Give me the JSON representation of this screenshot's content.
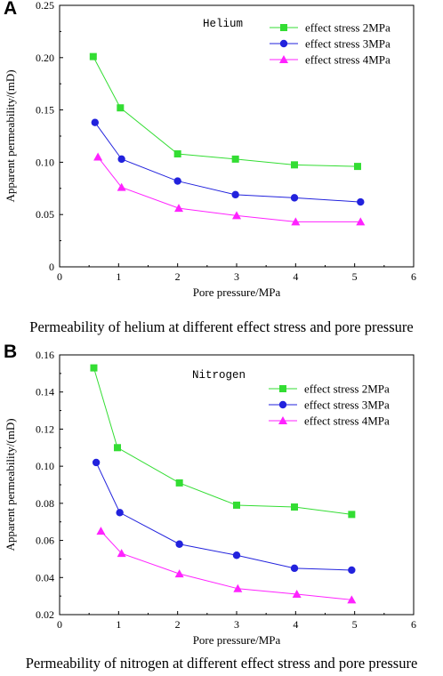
{
  "panels": [
    {
      "letter": "A",
      "caption": "Permeability of helium at different effect stress and pore pressure"
    },
    {
      "letter": "B",
      "caption": "Permeability of nitrogen at different effect stress and pore pressure"
    }
  ],
  "chart_data": [
    {
      "type": "line",
      "annotation": "Helium",
      "xlabel": "Pore pressure/MPa",
      "ylabel": "Apparent permeability/(mD)",
      "xlim": [
        0,
        6
      ],
      "ylim": [
        0,
        0.25
      ],
      "x_ticks": [
        "0",
        "1",
        "2",
        "3",
        "4",
        "5",
        "6"
      ],
      "y_ticks": [
        "0",
        "0.05",
        "0.10",
        "0.15",
        "0.20",
        "0.25"
      ],
      "legend_position": "top-right",
      "grid": false,
      "series": [
        {
          "name": "effect stress 2MPa",
          "color": "#33dd33",
          "marker": "square",
          "x": [
            0.57,
            1.03,
            2.0,
            2.98,
            3.98,
            5.05
          ],
          "y": [
            0.201,
            0.152,
            0.108,
            0.103,
            0.0975,
            0.096
          ]
        },
        {
          "name": "effect stress 3MPa",
          "color": "#2222dd",
          "marker": "circle",
          "x": [
            0.6,
            1.05,
            2.0,
            2.98,
            3.98,
            5.1
          ],
          "y": [
            0.138,
            0.103,
            0.082,
            0.069,
            0.066,
            0.062
          ]
        },
        {
          "name": "effect stress 4MPa",
          "color": "#ff22ff",
          "marker": "triangle",
          "x": [
            0.65,
            1.05,
            2.02,
            3.0,
            4.0,
            5.1
          ],
          "y": [
            0.105,
            0.076,
            0.056,
            0.049,
            0.043,
            0.043
          ]
        }
      ]
    },
    {
      "type": "line",
      "annotation": "Nitrogen",
      "xlabel": "Pore pressure/MPa",
      "ylabel": "Apparent permeability/(mD)",
      "xlim": [
        0,
        6
      ],
      "ylim": [
        0.02,
        0.16
      ],
      "x_ticks": [
        "0",
        "1",
        "2",
        "3",
        "4",
        "5",
        "6"
      ],
      "y_ticks": [
        "0.02",
        "0.04",
        "0.06",
        "0.08",
        "0.10",
        "0.12",
        "0.14",
        "0.16"
      ],
      "legend_position": "top-right",
      "grid": false,
      "series": [
        {
          "name": "effect stress 2MPa",
          "color": "#33dd33",
          "marker": "square",
          "x": [
            0.58,
            0.98,
            2.03,
            3.0,
            3.98,
            4.95
          ],
          "y": [
            0.153,
            0.11,
            0.091,
            0.079,
            0.078,
            0.074
          ]
        },
        {
          "name": "effect stress 3MPa",
          "color": "#2222dd",
          "marker": "circle",
          "x": [
            0.62,
            1.02,
            2.03,
            3.0,
            3.98,
            4.95
          ],
          "y": [
            0.102,
            0.075,
            0.058,
            0.052,
            0.045,
            0.044
          ]
        },
        {
          "name": "effect stress 4MPa",
          "color": "#ff22ff",
          "marker": "triangle",
          "x": [
            0.7,
            1.05,
            2.03,
            3.02,
            4.02,
            4.95
          ],
          "y": [
            0.065,
            0.053,
            0.042,
            0.034,
            0.031,
            0.028
          ]
        }
      ]
    }
  ]
}
